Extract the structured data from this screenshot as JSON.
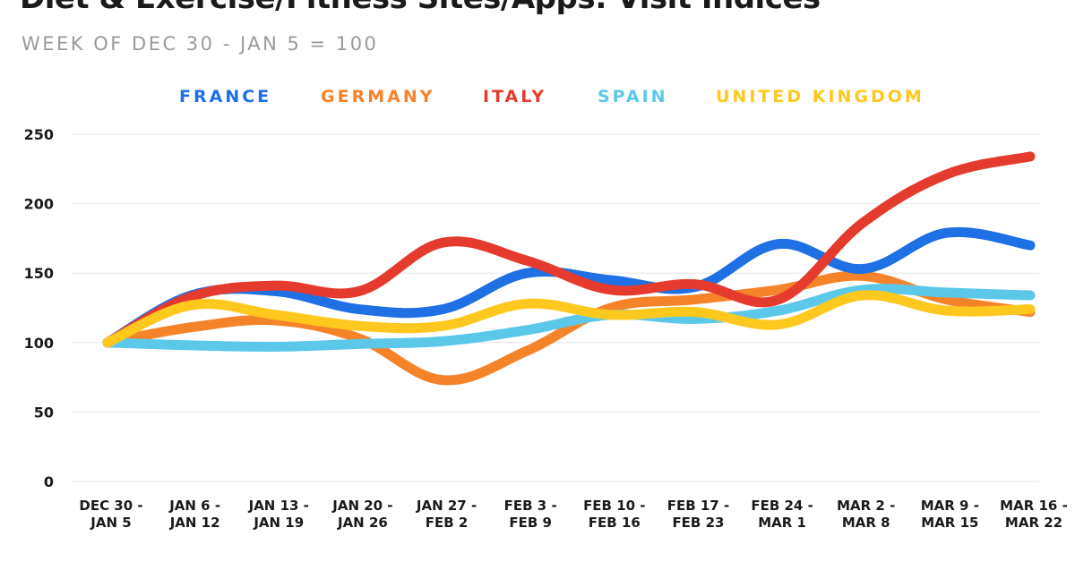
{
  "title": "Diet & Exercise/Fitness Sites/Apps: Visit Indices",
  "subtitle": "WEEK OF DEC 30 - JAN 5 = 100",
  "chart_data": {
    "type": "line",
    "title": "Diet & Exercise/Fitness Sites/Apps: Visit Indices",
    "subtitle": "WEEK OF DEC 30 - JAN 5 = 100",
    "categories": [
      [
        "DEC 30 -",
        "JAN 5"
      ],
      [
        "JAN 6 -",
        "JAN 12"
      ],
      [
        "JAN 13 -",
        "JAN 19"
      ],
      [
        "JAN 20 -",
        "JAN 26"
      ],
      [
        "JAN 27 -",
        "FEB 2"
      ],
      [
        "FEB 3 -",
        "FEB 9"
      ],
      [
        "FEB 10 -",
        "FEB 16"
      ],
      [
        "FEB 17 -",
        "FEB 23"
      ],
      [
        "FEB 24 -",
        "MAR 1"
      ],
      [
        "MAR 2 -",
        "MAR 8"
      ],
      [
        "MAR 9 -",
        "MAR 15"
      ],
      [
        "MAR 16 -",
        "MAR 22"
      ]
    ],
    "ylim": [
      0,
      250
    ],
    "yticks": [
      0,
      50,
      100,
      150,
      200,
      250
    ],
    "grid": true,
    "legend_position": "top",
    "series": [
      {
        "name": "FRANCE",
        "color": "#1f6fe5",
        "values": [
          100,
          134,
          137,
          124,
          124,
          150,
          145,
          140,
          171,
          153,
          179,
          170
        ]
      },
      {
        "name": "GERMANY",
        "color": "#f5832a",
        "values": [
          100,
          111,
          116,
          103,
          73,
          94,
          125,
          131,
          138,
          148,
          131,
          122
        ]
      },
      {
        "name": "ITALY",
        "color": "#e53b2e",
        "values": [
          100,
          133,
          141,
          137,
          172,
          159,
          138,
          142,
          131,
          186,
          221,
          234
        ]
      },
      {
        "name": "SPAIN",
        "color": "#5bc8ea",
        "values": [
          100,
          98,
          97,
          99,
          101,
          109,
          120,
          117,
          123,
          138,
          136,
          134
        ]
      },
      {
        "name": "UNITED KINGDOM",
        "color": "#ffc81e",
        "values": [
          100,
          127,
          120,
          112,
          112,
          128,
          120,
          122,
          113,
          134,
          123,
          124
        ]
      }
    ]
  }
}
